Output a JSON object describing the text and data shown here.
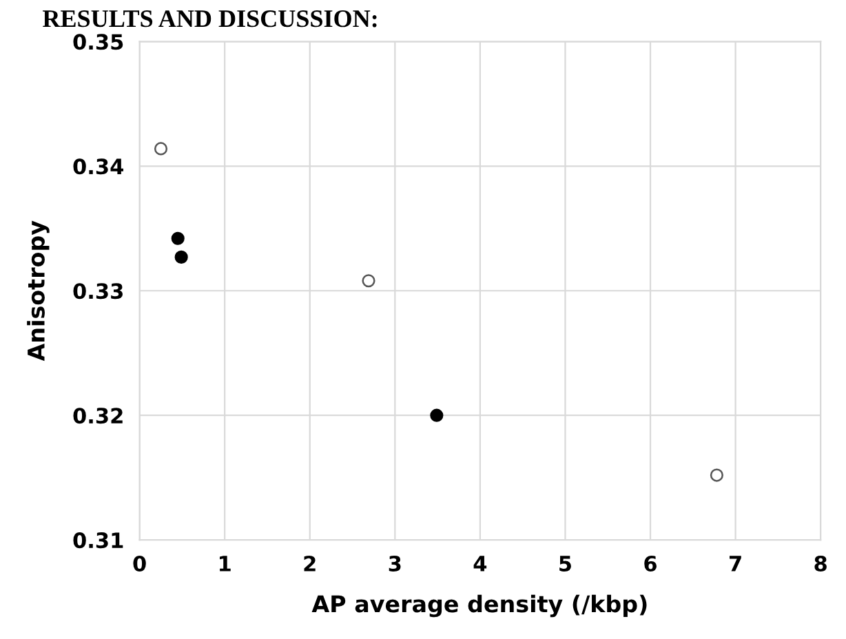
{
  "chart_data": {
    "type": "scatter",
    "xlabel": "AP average density (/kbp)",
    "ylabel": "Anisotropy",
    "annotations": [
      "RESULTS AND DISCUSSION:"
    ],
    "series": [
      {
        "color": "#ffffff",
        "x": [
          0.25,
          2.69,
          6.78
        ],
        "values": [
          0.3414,
          0.3308,
          0.3152
        ]
      },
      {
        "color": "#000000",
        "x": [
          0.45,
          0.49,
          3.49
        ],
        "values": [
          0.3342,
          0.3327,
          0.32
        ]
      }
    ],
    "xlim": [
      0,
      8
    ],
    "xticks": [
      0,
      1,
      2,
      3,
      4,
      5,
      6,
      7,
      8
    ],
    "ylim": [
      0.31,
      0.35
    ],
    "yticks": [
      0.31,
      0.32,
      0.33,
      0.34,
      0.35
    ],
    "grid": true,
    "marker": "circle"
  }
}
